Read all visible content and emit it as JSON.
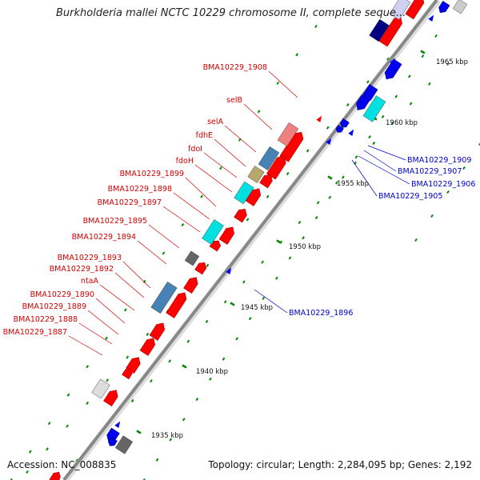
{
  "title": "Burkholderia mallei NCTC 10229 chromosome II, complete seque...",
  "footer": {
    "accession": "Accession: NC_008835",
    "topology": "Topology: circular; Length: 2,284,095 bp; Genes: 2,192"
  },
  "scale_labels": [
    "1965 kbp",
    "1960 kbp",
    "1955 kbp",
    "1950 kbp",
    "1945 kbp",
    "1940 kbp",
    "1935 kbp"
  ],
  "forward_genes": [
    "BMA10229_1908",
    "selB",
    "selA",
    "fdhE",
    "fdoI",
    "fdoH",
    "BMA10229_1899",
    "BMA10229_1898",
    "BMA10229_1897",
    "BMA10229_1895",
    "BMA10229_1894",
    "BMA10229_1893",
    "BMA10229_1892",
    "ntaA",
    "BMA10229_1890",
    "BMA10229_1889",
    "BMA10229_1888",
    "BMA10229_1887"
  ],
  "reverse_genes": [
    "BMA10229_1909",
    "BMA10229_1907",
    "BMA10229_1906",
    "BMA10229_1905",
    "BMA10229_1896"
  ],
  "colors": {
    "forward": "#d00000",
    "reverse": "#0000cc",
    "red_feature": "#ff0000",
    "blue_feature": "#0000ee",
    "cyan_feature": "#00e0e0",
    "backbone": "#888888",
    "tick": "#008800"
  }
}
